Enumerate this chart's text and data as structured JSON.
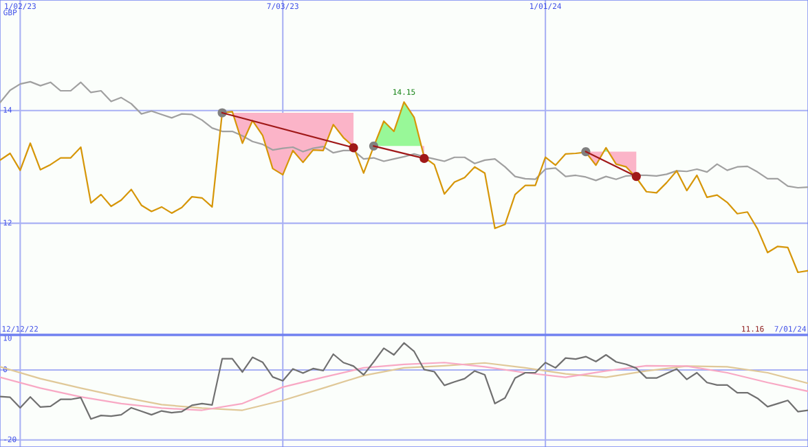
{
  "chart_data": [
    {
      "type": "line",
      "ylabel": "GBP",
      "x": [
        "2022-12-19",
        "2022-12-26",
        "2023-01-02",
        "2023-01-09",
        "2023-01-16",
        "2023-01-23",
        "2023-01-30",
        "2023-02-06",
        "2023-02-13",
        "2023-02-20",
        "2023-02-27",
        "2023-03-06",
        "2023-03-13",
        "2023-03-20",
        "2023-03-27",
        "2023-04-03",
        "2023-04-10",
        "2023-04-17",
        "2023-04-24",
        "2023-05-01",
        "2023-05-08",
        "2023-05-15",
        "2023-05-22",
        "2023-05-29",
        "2023-06-05",
        "2023-06-12",
        "2023-06-19",
        "2023-06-26",
        "2023-07-03",
        "2023-07-10",
        "2023-07-17",
        "2023-07-24",
        "2023-07-31",
        "2023-08-07",
        "2023-08-14",
        "2023-08-21",
        "2023-08-28",
        "2023-09-04",
        "2023-09-11",
        "2023-09-18",
        "2023-09-25",
        "2023-10-02",
        "2023-10-09",
        "2023-10-16",
        "2023-10-23",
        "2023-10-30",
        "2023-11-06",
        "2023-11-13",
        "2023-11-20",
        "2023-11-27",
        "2023-12-04",
        "2023-12-11",
        "2023-12-18",
        "2023-12-25",
        "2024-01-01",
        "2024-01-08",
        "2024-01-15",
        "2024-01-22",
        "2024-01-29",
        "2024-02-05",
        "2024-02-12",
        "2024-02-19",
        "2024-02-26",
        "2024-03-04",
        "2024-03-11",
        "2024-03-18",
        "2024-03-25",
        "2024-04-01",
        "2024-04-08",
        "2024-04-15",
        "2024-04-22",
        "2024-04-29",
        "2024-05-06",
        "2024-05-13",
        "2024-05-20",
        "2024-05-27",
        "2024-06-03",
        "2024-06-10",
        "2024-06-17",
        "2024-06-24",
        "2024-07-01"
      ],
      "series": [
        {
          "color": "#a0a0a0",
          "values": [
            14.14,
            14.36,
            14.47,
            14.51,
            14.44,
            14.5,
            14.35,
            14.35,
            14.5,
            14.32,
            14.35,
            14.16,
            14.23,
            14.12,
            13.94,
            13.99,
            13.93,
            13.87,
            13.94,
            13.93,
            13.83,
            13.69,
            13.63,
            13.63,
            13.55,
            13.45,
            13.4,
            13.3,
            13.33,
            13.35,
            13.27,
            13.33,
            13.36,
            13.25,
            13.29,
            13.29,
            13.14,
            13.16,
            13.1,
            13.14,
            13.18,
            13.23,
            13.18,
            13.14,
            13.1,
            13.17,
            13.17,
            13.06,
            13.12,
            13.14,
            13.0,
            12.83,
            12.79,
            12.78,
            12.96,
            12.98,
            12.83,
            12.85,
            12.82,
            12.76,
            12.83,
            12.78,
            12.84,
            12.85,
            12.85,
            12.84,
            12.87,
            12.93,
            12.92,
            12.96,
            12.91,
            13.05,
            12.94,
            13.0,
            13.01,
            12.91,
            12.79,
            12.79,
            12.66,
            12.63,
            12.64
          ]
        },
        {
          "color": "#d69608",
          "values": [
            13.12,
            13.24,
            12.94,
            13.42,
            12.95,
            13.04,
            13.16,
            13.16,
            13.35,
            12.36,
            12.51,
            12.3,
            12.41,
            12.6,
            12.32,
            12.21,
            12.29,
            12.18,
            12.28,
            12.47,
            12.45,
            12.29,
            13.96,
            13.98,
            13.42,
            13.82,
            13.56,
            12.97,
            12.86,
            13.29,
            13.08,
            13.3,
            13.29,
            13.75,
            13.52,
            13.36,
            12.89,
            13.36,
            13.81,
            13.63,
            14.15,
            13.88,
            13.17,
            13.04,
            12.52,
            12.73,
            12.81,
            13.0,
            12.89,
            11.91,
            11.98,
            12.51,
            12.67,
            12.67,
            13.17,
            13.03,
            13.23,
            13.24,
            13.26,
            13.03,
            13.34,
            13.05,
            13.0,
            12.81,
            12.56,
            12.54,
            12.72,
            12.93,
            12.58,
            12.85,
            12.46,
            12.5,
            12.37,
            12.17,
            12.2,
            11.9,
            11.48,
            11.59,
            11.57,
            11.13,
            11.16
          ]
        },
        {
          "type": "line",
          "color": "#a01818",
          "marker": "circle",
          "colors": [
            "#808080",
            "#a01818"
          ],
          "x": [
            "2023-05-22",
            "2023-08-21"
          ],
          "values": [
            13.96,
            13.34
          ]
        },
        {
          "type": "line",
          "color": "#a01818",
          "marker": "circle",
          "colors": [
            "#808080",
            "#a01818"
          ],
          "x": [
            "2023-09-04",
            "2023-10-09"
          ],
          "values": [
            13.37,
            13.15
          ]
        },
        {
          "type": "line",
          "color": "#a01818",
          "marker": "circle",
          "colors": [
            "#808080",
            "#a01818"
          ],
          "x": [
            "2024-01-29",
            "2024-03-04"
          ],
          "values": [
            13.27,
            12.83
          ]
        }
      ],
      "xlim": [
        "2022-12-19",
        "2024-07-01"
      ],
      "xticks": [
        {
          "value": "2023-01-02",
          "label": "1/02/23"
        },
        {
          "value": "2023-07-03",
          "label": "7/03/23"
        },
        {
          "value": "2024-01-01",
          "label": "1/01/24"
        }
      ],
      "ylim": [
        10.02,
        15.96
      ],
      "yticks": [
        12,
        14
      ],
      "grid": true,
      "annotations": [
        {
          "text": "14.15",
          "x": "2023-09-25",
          "y": 14.15
        },
        "12/12/22",
        "11.16",
        "7/01/24"
      ]
    },
    {
      "type": "line",
      "tick_labels": "y",
      "x": [
        "2022-12-19",
        "2022-12-26",
        "2023-01-02",
        "2023-01-09",
        "2023-01-16",
        "2023-01-23",
        "2023-01-30",
        "2023-02-06",
        "2023-02-13",
        "2023-02-20",
        "2023-02-27",
        "2023-03-06",
        "2023-03-13",
        "2023-03-20",
        "2023-03-27",
        "2023-04-03",
        "2023-04-10",
        "2023-04-17",
        "2023-04-24",
        "2023-05-01",
        "2023-05-08",
        "2023-05-15",
        "2023-05-22",
        "2023-05-29",
        "2023-06-05",
        "2023-06-12",
        "2023-06-19",
        "2023-06-26",
        "2023-07-03",
        "2023-07-10",
        "2023-07-17",
        "2023-07-24",
        "2023-07-31",
        "2023-08-07",
        "2023-08-14",
        "2023-08-21",
        "2023-08-28",
        "2023-09-04",
        "2023-09-11",
        "2023-09-18",
        "2023-09-25",
        "2023-10-02",
        "2023-10-09",
        "2023-10-16",
        "2023-10-23",
        "2023-10-30",
        "2023-11-06",
        "2023-11-13",
        "2023-11-20",
        "2023-11-27",
        "2023-12-04",
        "2023-12-11",
        "2023-12-18",
        "2023-12-25",
        "2024-01-01",
        "2024-01-08",
        "2024-01-15",
        "2024-01-22",
        "2024-01-29",
        "2024-02-05",
        "2024-02-12",
        "2024-02-19",
        "2024-02-26",
        "2024-03-04",
        "2024-03-11",
        "2024-03-18",
        "2024-03-25",
        "2024-04-01",
        "2024-04-08",
        "2024-04-15",
        "2024-04-22",
        "2024-04-29",
        "2024-05-06",
        "2024-05-13",
        "2024-05-20",
        "2024-05-27",
        "2024-06-03",
        "2024-06-10",
        "2024-06-17",
        "2024-06-24",
        "2024-07-01"
      ],
      "series": [
        {
          "color": "#e0c898",
          "x": [
            "2022-12-19",
            "2023-01-16",
            "2023-02-13",
            "2023-03-13",
            "2023-04-10",
            "2023-05-08",
            "2023-06-05",
            "2023-07-03",
            "2023-07-31",
            "2023-08-28",
            "2023-09-25",
            "2023-10-23",
            "2023-11-20",
            "2023-12-18",
            "2024-01-15",
            "2024-02-12",
            "2024-03-11",
            "2024-04-08",
            "2024-05-06",
            "2024-06-03",
            "2024-07-01"
          ],
          "values": [
            0.9,
            -2.5,
            -5.2,
            -7.7,
            -9.9,
            -10.9,
            -11.5,
            -8.7,
            -5.2,
            -1.6,
            0.6,
            1.2,
            2.0,
            0.6,
            -1.1,
            -2.1,
            -0.3,
            1.1,
            0.9,
            -0.8,
            -3.8
          ]
        },
        {
          "color": "#f8a8c4",
          "x": [
            "2022-12-19",
            "2023-01-16",
            "2023-02-13",
            "2023-03-13",
            "2023-04-10",
            "2023-05-08",
            "2023-06-05",
            "2023-07-03",
            "2023-07-31",
            "2023-08-28",
            "2023-09-25",
            "2023-10-23",
            "2023-11-20",
            "2023-12-18",
            "2024-01-15",
            "2024-02-12",
            "2024-03-11",
            "2024-04-08",
            "2024-05-06",
            "2024-06-03",
            "2024-07-01"
          ],
          "values": [
            -2.1,
            -5.2,
            -7.7,
            -9.6,
            -10.9,
            -11.5,
            -9.6,
            -4.9,
            -2.1,
            0.6,
            1.6,
            2.1,
            0.9,
            -0.8,
            -2.1,
            -0.3,
            1.2,
            1.1,
            -0.8,
            -3.6,
            -6.1
          ]
        },
        {
          "color": "#707070",
          "values": [
            -7.6,
            -7.8,
            -10.8,
            -7.7,
            -10.6,
            -10.4,
            -8.4,
            -8.4,
            -7.9,
            -14.0,
            -13.0,
            -13.2,
            -12.8,
            -10.8,
            -11.8,
            -12.8,
            -11.7,
            -12.2,
            -11.9,
            -10.1,
            -9.6,
            -10.0,
            3.2,
            3.2,
            -0.6,
            3.6,
            2.2,
            -2.0,
            -3.1,
            0.3,
            -0.9,
            0.4,
            -0.2,
            4.5,
            2.1,
            1.1,
            -1.4,
            2.3,
            6.2,
            4.3,
            7.7,
            5.3,
            0.1,
            -0.5,
            -4.4,
            -3.4,
            -2.5,
            -0.3,
            -1.4,
            -9.6,
            -8.0,
            -2.3,
            -0.8,
            -0.8,
            2.1,
            0.6,
            3.4,
            3.1,
            3.8,
            2.4,
            4.3,
            2.3,
            1.6,
            0.5,
            -2.3,
            -2.3,
            -1.0,
            0.3,
            -2.7,
            -0.8,
            -3.6,
            -4.3,
            -4.3,
            -6.5,
            -6.5,
            -8.1,
            -10.5,
            -9.6,
            -8.7,
            -11.9,
            -11.5
          ]
        }
      ],
      "xlim": [
        "2022-12-19",
        "2024-07-01"
      ],
      "xticks": [
        {
          "value": "2023-01-02",
          "label": null
        },
        {
          "value": "2023-07-03",
          "label": null
        },
        {
          "value": "2024-01-01",
          "label": null
        }
      ],
      "ylim": [
        -22,
        10
      ],
      "yticks": [
        10,
        0,
        -20
      ],
      "grid": true
    }
  ]
}
